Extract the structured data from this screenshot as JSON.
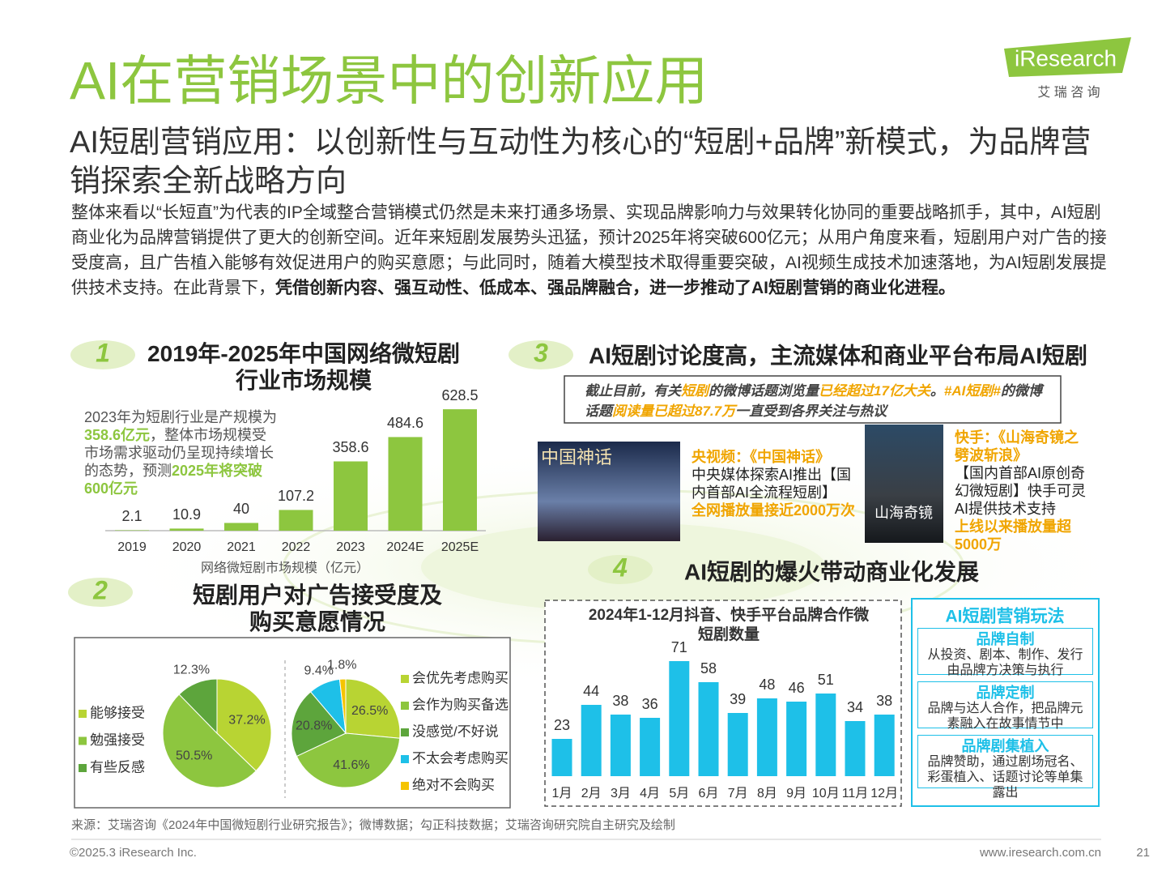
{
  "header": {
    "title": "AI在营销场景中的创新应用",
    "logo": "iResearch",
    "logo_sub": "艾 瑞 咨 询",
    "subtitle": "AI短剧营销应用：以创新性与互动性为核心的“短剧+品牌”新模式，为品牌营销探索全新战略方向"
  },
  "intro": {
    "runs": [
      {
        "text": "整体来看以“长短直”为代表的IP全域整合营销模式仍然是未来打通多场景、实现品牌影响力与效果转化协同的重要战略抓手，其中，AI短剧商业化为品牌营销提供了更大的创新空间。近年来短剧发展势头迅猛，预计2025年将突破600亿元；从用户角度来看，短剧用户对广告的接受度高，且广告植入能够有效促进用户的购买意愿；与此同时，随着大模型技术取得重要突破，AI视频生成技术加速落地，为AI短剧发展提供技术支持。在此背景下，",
        "em": false
      },
      {
        "text": "凭借创新内容、强互动性、低成本、强品牌融合，进一步推动了AI短剧营销的商业化进程。",
        "em": true
      }
    ]
  },
  "sections": [
    {
      "number": "1",
      "title": "2019年-2025年中国网络微短剧行业市场规模",
      "note": {
        "runs": [
          {
            "text": "2023年为短剧行业是产规模为",
            "em": false
          },
          {
            "text": "358.6亿元",
            "em": true
          },
          {
            "text": "，整体市场规模受市场需求驱动仍呈现持续增长的态势，预测",
            "em": false
          },
          {
            "text": "2025年将突破600亿元",
            "em": true
          }
        ]
      }
    },
    {
      "number": "2",
      "title": "短剧用户对广告接受度及购买意愿情况"
    },
    {
      "number": "3",
      "title": "AI短剧讨论度高，主流媒体和商业平台布局AI短剧",
      "box": {
        "runs": [
          {
            "text": "截止目前，有关",
            "em": false
          },
          {
            "text": "短剧",
            "em": true
          },
          {
            "text": "的微博话题浏览量",
            "em": false
          },
          {
            "text": "已经超过17亿大关",
            "em": true
          },
          {
            "text": "。",
            "em": false
          },
          {
            "text": "#AI短剧#",
            "em": true
          },
          {
            "text": "的微博话题",
            "em": false
          },
          {
            "text": "阅读量已超过87.7万",
            "em": true
          },
          {
            "text": "一直受到各界关注与热议",
            "em": false
          }
        ]
      },
      "cases": [
        {
          "poster": "中国神话",
          "label": "央视频：《中国神话》",
          "text": "中央媒体探索AI推出【国内首部AI全流程短剧】",
          "highlight": "全网播放量接近2000万次"
        },
        {
          "poster": "山海奇镜",
          "label": "快手：《山海奇镜之劈波斩浪》",
          "text": "【国内首部AI原创奇幻微短剧】快手可灵AI提供技术支持",
          "highlight": "上线以来播放量超5000万"
        }
      ]
    },
    {
      "number": "4",
      "title": "AI短剧的爆火带动商业化发展",
      "side": {
        "title": "AI短剧营销玩法",
        "items": [
          {
            "title": "品牌自制",
            "text": "从投资、剧本、制作、发行由品牌方决策与执行"
          },
          {
            "title": "品牌定制",
            "text": "品牌与达人合作，把品牌元素融入在故事情节中"
          },
          {
            "title": "品牌剧集植入",
            "text": "品牌赞助，通过剧场冠名、彩蛋植入、话题讨论等单集露出"
          }
        ]
      }
    }
  ],
  "chart_data": [
    {
      "type": "bar",
      "x_label": "网络微短剧市场规模（亿元）",
      "categories": [
        "2019",
        "2020",
        "2021",
        "2022",
        "2023",
        "2024E",
        "2025E"
      ],
      "values": [
        2.1,
        10.9,
        40,
        107.2,
        358.6,
        484.6,
        628.5
      ],
      "color": "#8dc63f",
      "ylim": [
        0,
        650
      ]
    },
    {
      "type": "pie",
      "categories": [
        "能够接受",
        "勉强接受",
        "有些反感"
      ],
      "values": [
        37.2,
        50.5,
        12.3
      ],
      "value_labels": [
        "37.2%",
        "50.5%",
        "12.3%"
      ],
      "colors": [
        "#b8d433",
        "#8dc63f",
        "#5da53c"
      ]
    },
    {
      "type": "pie",
      "categories": [
        "会优先考虑购买",
        "会作为购买备选",
        "没感觉/不好说",
        "不太会考虑购买",
        "绝对不会购买"
      ],
      "values": [
        26.5,
        41.6,
        20.8,
        9.4,
        1.8
      ],
      "value_labels": [
        "26.5%",
        "41.6%",
        "20.8%",
        "9.4%",
        "1.8%"
      ],
      "colors": [
        "#b8d433",
        "#8dc63f",
        "#5da53c",
        "#1ec0e8",
        "#f5c400"
      ]
    },
    {
      "type": "bar",
      "title": "2024年1-12月抖音、快手平台品牌合作微短剧数量",
      "categories": [
        "1月",
        "2月",
        "3月",
        "4月",
        "5月",
        "6月",
        "7月",
        "8月",
        "9月",
        "10月",
        "11月",
        "12月"
      ],
      "values": [
        23,
        44,
        38,
        36,
        71,
        58,
        39,
        48,
        46,
        51,
        34,
        38
      ],
      "color": "#1ec0e8",
      "ylim": [
        0,
        75
      ]
    }
  ],
  "source": "来源：艾瑞咨询《2024年中国微短剧行业研究报告》；微博数据；勾正科技数据；艾瑞咨询研究院自主研究及绘制",
  "footer": {
    "copyright": "©2025.3 iResearch Inc.",
    "url": "www.iresearch.com.cn",
    "page": "21"
  }
}
